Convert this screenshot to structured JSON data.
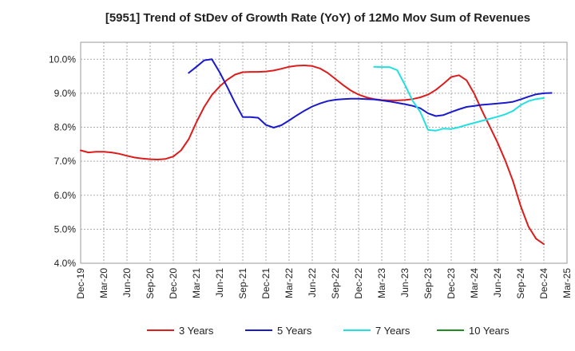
{
  "chart_data": {
    "type": "line",
    "title": "[5951]  Trend of StDev of Growth Rate (YoY) of 12Mo Mov Sum of Revenues",
    "xlabel": "",
    "ylabel": "",
    "ylim": [
      4.0,
      10.5
    ],
    "yticks": [
      4.0,
      5.0,
      6.0,
      7.0,
      8.0,
      9.0,
      10.0
    ],
    "ytick_labels": [
      "4.0%",
      "5.0%",
      "6.0%",
      "7.0%",
      "8.0%",
      "9.0%",
      "10.0%"
    ],
    "xticks": [
      "Dec-19",
      "Mar-20",
      "Jun-20",
      "Sep-20",
      "Dec-20",
      "Mar-21",
      "Jun-21",
      "Sep-21",
      "Dec-21",
      "Mar-22",
      "Jun-22",
      "Sep-22",
      "Dec-22",
      "Mar-23",
      "Jun-23",
      "Sep-23",
      "Dec-23",
      "Mar-24",
      "Jun-24",
      "Sep-24",
      "Dec-24",
      "Mar-25"
    ],
    "grid": true,
    "legend_position": "bottom",
    "series": [
      {
        "name": "3 Years",
        "color": "#dd1c1c",
        "start_index": 0,
        "values": [
          7.32,
          7.26,
          7.28,
          7.28,
          7.26,
          7.22,
          7.16,
          7.11,
          7.08,
          7.06,
          7.05,
          7.07,
          7.14,
          7.32,
          7.65,
          8.15,
          8.6,
          8.95,
          9.2,
          9.4,
          9.55,
          9.62,
          9.63,
          9.63,
          9.64,
          9.67,
          9.72,
          9.78,
          9.81,
          9.82,
          9.8,
          9.73,
          9.6,
          9.42,
          9.24,
          9.08,
          8.96,
          8.88,
          8.83,
          8.8,
          8.79,
          8.79,
          8.8,
          8.83,
          8.88,
          8.96,
          9.1,
          9.28,
          9.48,
          9.53,
          9.38,
          8.98,
          8.48,
          8.02,
          7.55,
          7.02,
          6.42,
          5.68,
          5.08,
          4.72,
          4.56
        ]
      },
      {
        "name": "5 Years",
        "color": "#1a1acc",
        "start_index": 14,
        "values": [
          9.6,
          9.78,
          9.97,
          10.0,
          9.62,
          9.18,
          8.72,
          8.3,
          8.3,
          8.28,
          8.07,
          7.99,
          8.06,
          8.2,
          8.35,
          8.49,
          8.61,
          8.7,
          8.77,
          8.81,
          8.83,
          8.84,
          8.84,
          8.83,
          8.82,
          8.79,
          8.76,
          8.72,
          8.68,
          8.63,
          8.56,
          8.41,
          8.33,
          8.36,
          8.45,
          8.53,
          8.6,
          8.63,
          8.66,
          8.68,
          8.7,
          8.72,
          8.75,
          8.82,
          8.9,
          8.97,
          9.0,
          9.01
        ]
      },
      {
        "name": "7 Years",
        "color": "#22e0e0",
        "start_index": 38,
        "values": [
          9.78,
          9.77,
          9.77,
          9.68,
          9.25,
          8.78,
          8.45,
          7.92,
          7.9,
          7.96,
          7.95,
          8.0,
          8.07,
          8.13,
          8.19,
          8.25,
          8.31,
          8.38,
          8.48,
          8.65,
          8.77,
          8.83,
          8.86
        ]
      },
      {
        "name": "10 Years",
        "color": "#1e8c1e",
        "start_index": 0,
        "values": []
      }
    ]
  }
}
